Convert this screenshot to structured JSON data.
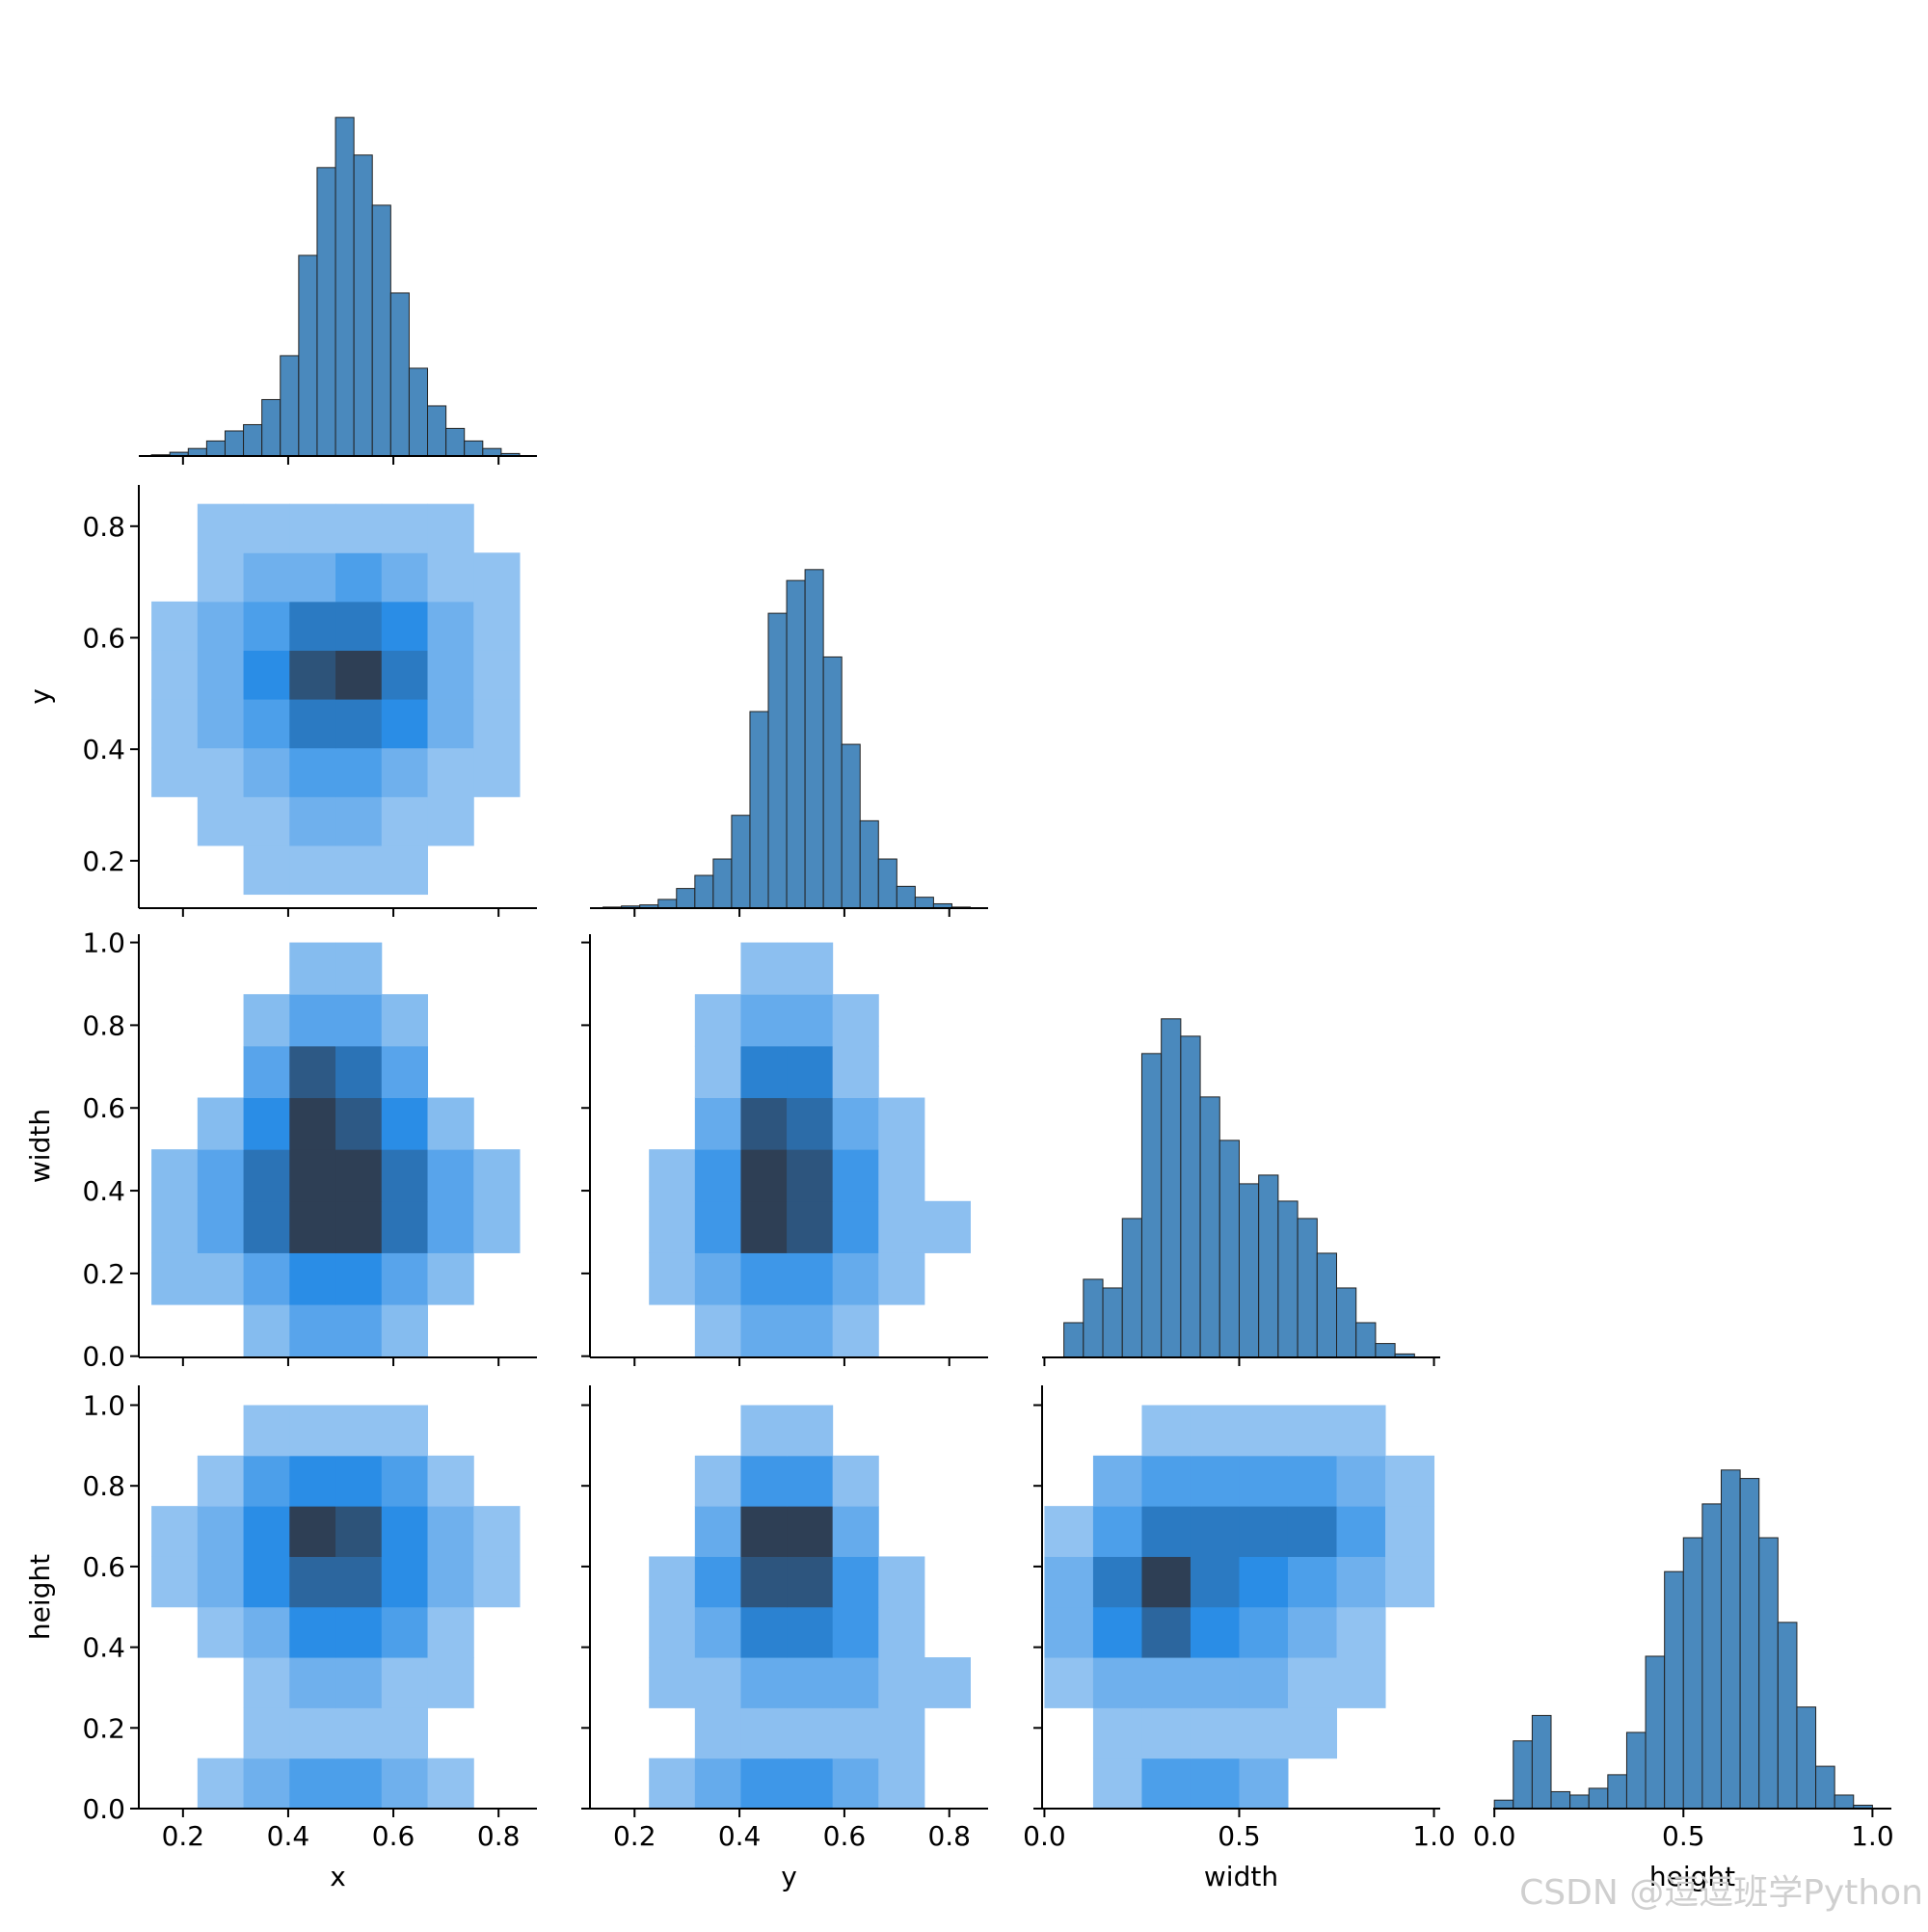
{
  "chart_data": [
    {
      "type": "histogram",
      "color": "#4a89bd",
      "bins": [
        0.14,
        0.175,
        0.21,
        0.245,
        0.28,
        0.315,
        0.35,
        0.385,
        0.42,
        0.455,
        0.49,
        0.525,
        0.56,
        0.595,
        0.63,
        0.665,
        0.7,
        0.735,
        0.77,
        0.805,
        0.84
      ],
      "counts": [
        1,
        3,
        6,
        12,
        20,
        25,
        45,
        80,
        160,
        230,
        270,
        240,
        200,
        130,
        70,
        40,
        22,
        12,
        6,
        2
      ],
      "xlim": [
        0.116,
        0.873
      ],
      "xticks": [
        0.2,
        0.4,
        0.6,
        0.8
      ]
    },
    {
      "type": "hist2d",
      "cmap": [
        "#b3d3f4",
        "#2a8de6",
        "#2e3f55"
      ],
      "xbins": [
        0.14,
        0.2275,
        0.315,
        0.4025,
        0.49,
        0.5775,
        0.665,
        0.7525,
        0.84
      ],
      "ybins": [
        0.14,
        0.2275,
        0.315,
        0.4025,
        0.49,
        0.5775,
        0.665,
        0.7525,
        0.84
      ],
      "counts": [
        [
          0,
          0,
          1,
          1,
          1,
          1,
          0,
          0
        ],
        [
          0,
          1,
          1,
          2,
          2,
          1,
          1,
          0
        ],
        [
          1,
          1,
          2,
          3,
          3,
          2,
          1,
          1
        ],
        [
          1,
          2,
          3,
          5,
          5,
          4,
          2,
          1
        ],
        [
          1,
          2,
          4,
          7,
          8,
          5,
          2,
          1
        ],
        [
          1,
          2,
          3,
          5,
          5,
          4,
          2,
          1
        ],
        [
          0,
          1,
          2,
          2,
          3,
          2,
          1,
          1
        ],
        [
          0,
          1,
          1,
          1,
          1,
          1,
          1,
          0
        ]
      ],
      "xlim": [
        0.116,
        0.873
      ],
      "ylim": [
        0.115,
        0.874
      ],
      "xticks": [
        0.2,
        0.4,
        0.6,
        0.8
      ],
      "yticks": [
        0.2,
        0.4,
        0.6,
        0.8
      ],
      "ylabel": "y"
    },
    {
      "type": "histogram",
      "color": "#4a89bd",
      "bins": [
        0.14,
        0.175,
        0.21,
        0.245,
        0.28,
        0.315,
        0.35,
        0.385,
        0.42,
        0.455,
        0.49,
        0.525,
        0.56,
        0.595,
        0.63,
        0.665,
        0.7,
        0.735,
        0.77,
        0.805,
        0.84
      ],
      "counts": [
        1,
        2,
        3,
        8,
        18,
        30,
        45,
        85,
        180,
        270,
        300,
        310,
        230,
        150,
        80,
        45,
        20,
        10,
        4,
        1
      ],
      "xlim": [
        0.115,
        0.874
      ],
      "xticks": [
        0.2,
        0.4,
        0.6,
        0.8
      ]
    },
    {
      "type": "hist2d",
      "cmap": [
        "#b3d3f4",
        "#2a8de6",
        "#2e3f55"
      ],
      "xbins": [
        0.14,
        0.2275,
        0.315,
        0.4025,
        0.49,
        0.5775,
        0.665,
        0.7525,
        0.84
      ],
      "ybins": [
        0,
        0.125,
        0.25,
        0.375,
        0.5,
        0.625,
        0.75,
        0.875,
        1
      ],
      "counts": [
        [
          0,
          0,
          1,
          2,
          2,
          1,
          0,
          0
        ],
        [
          1,
          1,
          2,
          3,
          3,
          2,
          1,
          0
        ],
        [
          1,
          2,
          4,
          6,
          6,
          4,
          2,
          1
        ],
        [
          1,
          2,
          4,
          6,
          6,
          4,
          2,
          1
        ],
        [
          0,
          1,
          3,
          6,
          5,
          3,
          1,
          0
        ],
        [
          0,
          0,
          2,
          5,
          4,
          2,
          0,
          0
        ],
        [
          0,
          0,
          1,
          2,
          2,
          1,
          0,
          0
        ],
        [
          0,
          0,
          0,
          1,
          1,
          0,
          0,
          0
        ]
      ],
      "xlim": [
        0.116,
        0.873
      ],
      "ylim": [
        -0.003,
        1.02
      ],
      "xticks": [
        0.2,
        0.4,
        0.6,
        0.8
      ],
      "yticks": [
        {
          "value": 0,
          "label": "0.0"
        },
        0.2,
        0.4,
        0.6,
        0.8,
        {
          "value": 1,
          "label": "1.0"
        }
      ],
      "ylabel": "width"
    },
    {
      "type": "hist2d",
      "cmap": [
        "#b3d3f4",
        "#2a8de6",
        "#2e3f55"
      ],
      "xbins": [
        0.14,
        0.2275,
        0.315,
        0.4025,
        0.49,
        0.5775,
        0.665,
        0.7525,
        0.84
      ],
      "ybins": [
        0,
        0.125,
        0.25,
        0.375,
        0.5,
        0.625,
        0.75,
        0.875,
        1
      ],
      "counts": [
        [
          0,
          0,
          1,
          2,
          2,
          1,
          0,
          0
        ],
        [
          0,
          1,
          2,
          3,
          3,
          2,
          1,
          0
        ],
        [
          0,
          1,
          3,
          7,
          6,
          3,
          1,
          1
        ],
        [
          0,
          1,
          3,
          7,
          6,
          3,
          1,
          0
        ],
        [
          0,
          0,
          2,
          6,
          5,
          2,
          1,
          0
        ],
        [
          0,
          0,
          1,
          4,
          4,
          1,
          0,
          0
        ],
        [
          0,
          0,
          1,
          2,
          2,
          1,
          0,
          0
        ],
        [
          0,
          0,
          0,
          1,
          1,
          0,
          0,
          0
        ]
      ],
      "xlim": [
        0.115,
        0.874
      ],
      "ylim": [
        -0.003,
        1.02
      ],
      "xticks": [
        0.2,
        0.4,
        0.6,
        0.8
      ],
      "yticks": [
        0,
        0.2,
        0.4,
        0.6,
        0.8,
        1
      ]
    },
    {
      "type": "histogram",
      "color": "#4a89bd",
      "bins": [
        0,
        0.05,
        0.1,
        0.15,
        0.2,
        0.25,
        0.3,
        0.35,
        0.4,
        0.45,
        0.5,
        0.55,
        0.6,
        0.65,
        0.7,
        0.75,
        0.8,
        0.85,
        0.9,
        0.95,
        1
      ],
      "counts": [
        0,
        20,
        45,
        40,
        80,
        175,
        195,
        185,
        150,
        125,
        100,
        105,
        90,
        80,
        60,
        40,
        20,
        8,
        2,
        0
      ],
      "xlim": [
        -0.006,
        1.016
      ],
      "xticks": [
        0,
        0.5,
        1
      ]
    },
    {
      "type": "hist2d",
      "cmap": [
        "#b3d3f4",
        "#2a8de6",
        "#2e3f55"
      ],
      "xbins": [
        0.14,
        0.2275,
        0.315,
        0.4025,
        0.49,
        0.5775,
        0.665,
        0.7525,
        0.84
      ],
      "ybins": [
        0,
        0.125,
        0.25,
        0.375,
        0.5,
        0.625,
        0.75,
        0.875,
        1
      ],
      "counts": [
        [
          0,
          1,
          2,
          3,
          3,
          2,
          1,
          0
        ],
        [
          0,
          0,
          1,
          1,
          1,
          1,
          0,
          0
        ],
        [
          0,
          0,
          1,
          2,
          2,
          1,
          1,
          0
        ],
        [
          0,
          1,
          2,
          4,
          4,
          3,
          1,
          0
        ],
        [
          1,
          2,
          4,
          6,
          6,
          4,
          2,
          1
        ],
        [
          1,
          2,
          4,
          8,
          7,
          4,
          2,
          1
        ],
        [
          0,
          1,
          3,
          4,
          4,
          3,
          1,
          0
        ],
        [
          0,
          0,
          1,
          1,
          1,
          1,
          0,
          0
        ]
      ],
      "xlim": [
        0.116,
        0.873
      ],
      "ylim": [
        0,
        1.049
      ],
      "xticks": [
        0.2,
        0.4,
        0.6,
        0.8
      ],
      "yticks": [
        {
          "value": 0,
          "label": "0.0"
        },
        0.2,
        0.4,
        0.6,
        0.8,
        {
          "value": 1,
          "label": "1.0"
        }
      ],
      "xlabel": "x",
      "ylabel": "height"
    },
    {
      "type": "hist2d",
      "cmap": [
        "#b3d3f4",
        "#2a8de6",
        "#2e3f55"
      ],
      "xbins": [
        0.14,
        0.2275,
        0.315,
        0.4025,
        0.49,
        0.5775,
        0.665,
        0.7525,
        0.84
      ],
      "ybins": [
        0,
        0.125,
        0.25,
        0.375,
        0.5,
        0.625,
        0.75,
        0.875,
        1
      ],
      "counts": [
        [
          0,
          1,
          2,
          3,
          3,
          2,
          1,
          0
        ],
        [
          0,
          0,
          1,
          1,
          1,
          1,
          1,
          0
        ],
        [
          0,
          1,
          1,
          2,
          2,
          2,
          1,
          1
        ],
        [
          0,
          1,
          2,
          4,
          4,
          3,
          1,
          0
        ],
        [
          0,
          1,
          3,
          6,
          6,
          3,
          1,
          0
        ],
        [
          0,
          0,
          2,
          7,
          7,
          2,
          0,
          0
        ],
        [
          0,
          0,
          1,
          3,
          3,
          1,
          0,
          0
        ],
        [
          0,
          0,
          0,
          1,
          1,
          0,
          0,
          0
        ]
      ],
      "xlim": [
        0.115,
        0.874
      ],
      "ylim": [
        0,
        1.049
      ],
      "xticks": [
        0.2,
        0.4,
        0.6,
        0.8
      ],
      "yticks": [
        0,
        0.2,
        0.4,
        0.6,
        0.8,
        1
      ],
      "xlabel": "y"
    },
    {
      "type": "hist2d",
      "cmap": [
        "#b3d3f4",
        "#2a8de6",
        "#2e3f55"
      ],
      "xbins": [
        0,
        0.125,
        0.25,
        0.375,
        0.5,
        0.625,
        0.75,
        0.875,
        1
      ],
      "ybins": [
        0,
        0.125,
        0.25,
        0.375,
        0.5,
        0.625,
        0.75,
        0.875,
        1
      ],
      "counts": [
        [
          0,
          1,
          3,
          3,
          2,
          0,
          0,
          0
        ],
        [
          0,
          1,
          1,
          1,
          1,
          1,
          0,
          0
        ],
        [
          1,
          2,
          2,
          2,
          2,
          1,
          1,
          0
        ],
        [
          2,
          4,
          6,
          4,
          3,
          2,
          1,
          0
        ],
        [
          2,
          5,
          8,
          5,
          4,
          3,
          2,
          1
        ],
        [
          1,
          3,
          5,
          5,
          5,
          5,
          3,
          1
        ],
        [
          0,
          2,
          3,
          3,
          3,
          3,
          2,
          1
        ],
        [
          0,
          0,
          1,
          1,
          1,
          1,
          1,
          0
        ]
      ],
      "xlim": [
        -0.006,
        1.016
      ],
      "ylim": [
        0,
        1.049
      ],
      "xticks": [
        {
          "value": 0,
          "label": "0.0"
        },
        0.5,
        {
          "value": 1,
          "label": "1.0"
        }
      ],
      "yticks": [
        0,
        0.2,
        0.4,
        0.6,
        0.8,
        1
      ],
      "xlabel": "width"
    },
    {
      "type": "histogram",
      "color": "#4a89bd",
      "bins": [
        0,
        0.05,
        0.1,
        0.15,
        0.2,
        0.25,
        0.3,
        0.35,
        0.4,
        0.45,
        0.5,
        0.55,
        0.6,
        0.65,
        0.7,
        0.75,
        0.8,
        0.85,
        0.9,
        0.95,
        1
      ],
      "counts": [
        5,
        40,
        55,
        10,
        8,
        12,
        20,
        45,
        90,
        140,
        160,
        180,
        200,
        195,
        160,
        110,
        60,
        25,
        8,
        2
      ],
      "xlim": [
        -0.003,
        1.05
      ],
      "xticks": [
        {
          "value": 0,
          "label": "0.0"
        },
        0.5,
        {
          "value": 1,
          "label": "1.0"
        }
      ],
      "xlabel": "height"
    }
  ],
  "watermark": "CSDN @逗逗班学Python"
}
